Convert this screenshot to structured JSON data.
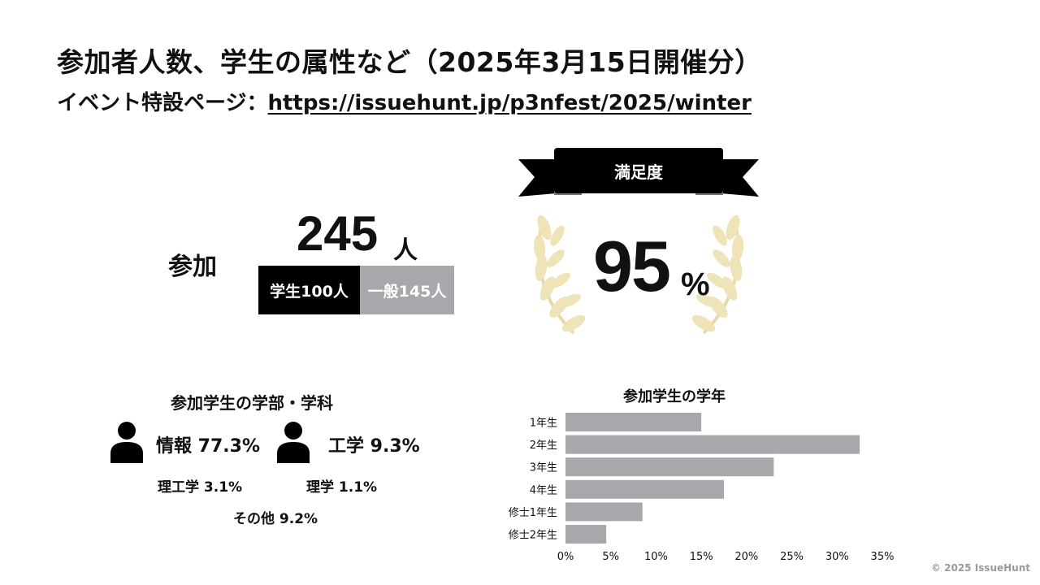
{
  "header": {
    "title": "参加者人数、学生の属性など（2025年3月15日開催分）",
    "subtitle_prefix": "イベント特設ページ：",
    "subtitle_link": "https://issuehunt.jp/p3nfest/2025/winter"
  },
  "attendance": {
    "label": "参加",
    "total": "245",
    "unit": "人",
    "student": "学生100人",
    "general": "一般145人"
  },
  "satisfaction": {
    "label": "満足度",
    "value": "95",
    "unit": "%"
  },
  "departments": {
    "title": "参加学生の学部・学科",
    "info": "情報 77.3%",
    "engineering": "工学 9.3%",
    "science_engineering": "理工学 3.1%",
    "science": "理学 1.1%",
    "other": "その他 9.2%"
  },
  "grade_chart_title": "参加学生の学年",
  "chart_data": {
    "type": "bar",
    "orientation": "horizontal",
    "title": "参加学生の学年",
    "categories": [
      "1年生",
      "2年生",
      "3年生",
      "4年生",
      "修士1年生",
      "修士2年生"
    ],
    "values": [
      15,
      32.5,
      23,
      17.5,
      8.5,
      4.5
    ],
    "xlim": [
      0,
      35
    ],
    "x_ticks": [
      "0%",
      "5%",
      "10%",
      "15%",
      "20%",
      "25%",
      "30%",
      "35%"
    ],
    "color": "#a8a8ac"
  },
  "footer": {
    "copyright": "© 2025 IssueHunt"
  },
  "colors": {
    "student_bar": "#000000",
    "general_bar": "#a8a8ac",
    "laurel": "#efe3b8"
  }
}
